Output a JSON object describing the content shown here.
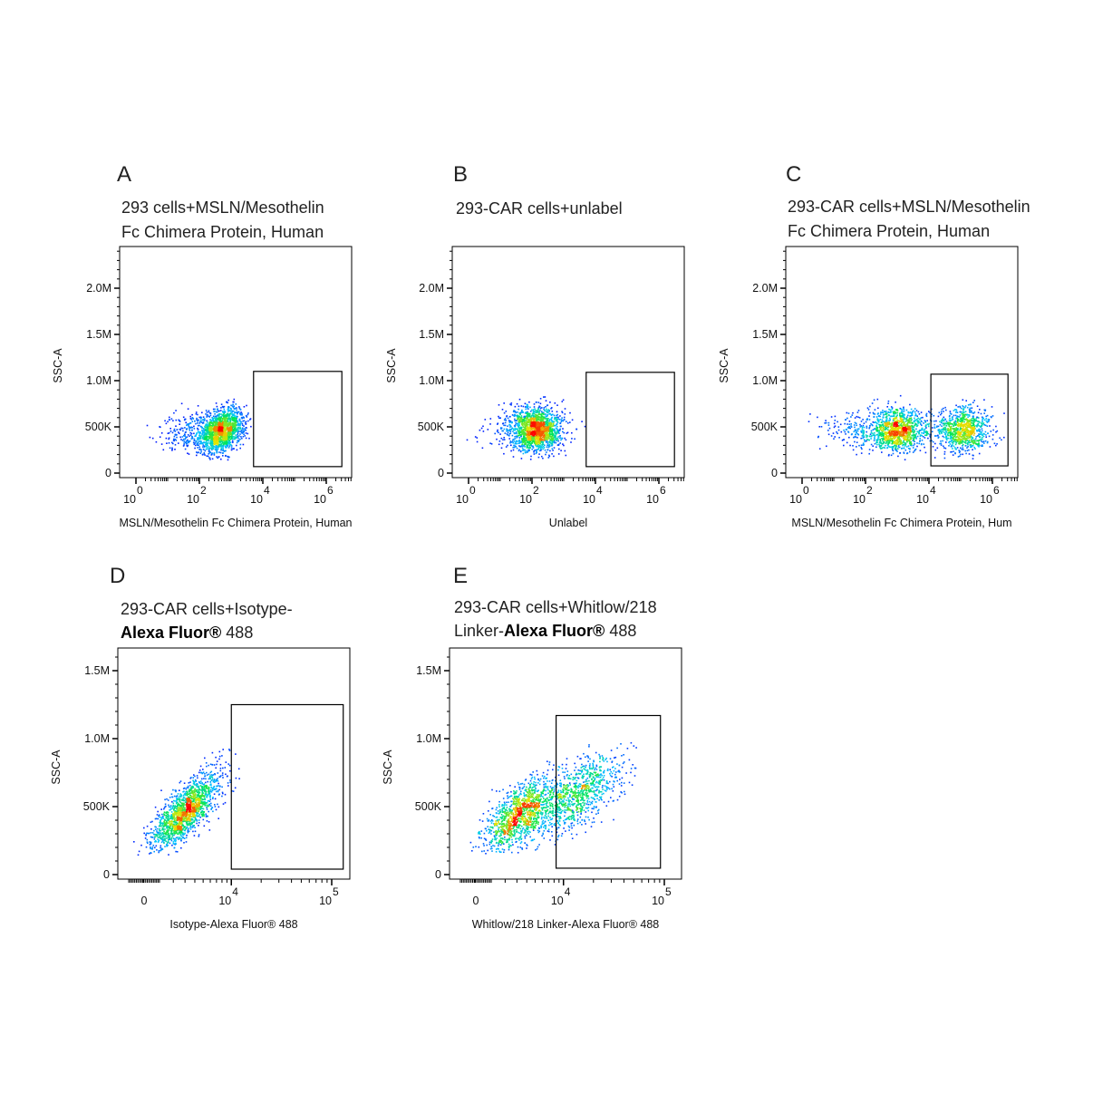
{
  "chart_data": {
    "type": "scatter",
    "panels": [
      {
        "label": "A",
        "title_lines": [
          [
            "293 cells+MSLN/Mesothelin"
          ],
          [
            "Fc Chimera Protein, Human"
          ]
        ],
        "xlabel": "MSLN/Mesothelin Fc Chimera Protein, Human",
        "ylabel": "SSC-A",
        "x_scale": "log",
        "x_ticks": [
          {
            "base": "10",
            "exp": "0",
            "value": 1
          },
          {
            "base": "10",
            "exp": "2",
            "value": 100
          },
          {
            "base": "10",
            "exp": "4",
            "value": 10000
          },
          {
            "base": "10",
            "exp": "6",
            "value": 1000000
          }
        ],
        "y_ticks": [
          {
            "label": "0",
            "value": 0
          },
          {
            "label": "500K",
            "value": 500000
          },
          {
            "label": "1.0M",
            "value": 1000000
          },
          {
            "label": "1.5M",
            "value": 1500000
          },
          {
            "label": "2.0M",
            "value": 2000000
          }
        ],
        "ylim": [
          0,
          2450000
        ],
        "gate": {
          "x": [
            5100,
            3100000
          ],
          "y": [
            70000,
            1100000
          ]
        },
        "populations": [
          {
            "center_x": 500,
            "center_y": 470000,
            "spread_log10": 0.35,
            "spread_y": 120000,
            "n": 1500,
            "corr": 0.3
          },
          {
            "center_x": 60,
            "center_y": 450000,
            "spread_log10": 0.55,
            "spread_y": 110000,
            "n": 300,
            "corr": 0.1
          }
        ]
      },
      {
        "label": "B",
        "title_lines": [
          [
            "293-CAR cells+unlabel"
          ]
        ],
        "xlabel": "Unlabel",
        "ylabel": "SSC-A",
        "x_scale": "log",
        "x_ticks": [
          {
            "base": "10",
            "exp": "0",
            "value": 1
          },
          {
            "base": "10",
            "exp": "2",
            "value": 100
          },
          {
            "base": "10",
            "exp": "4",
            "value": 10000
          },
          {
            "base": "10",
            "exp": "6",
            "value": 1000000
          }
        ],
        "y_ticks": [
          {
            "label": "0",
            "value": 0
          },
          {
            "label": "500K",
            "value": 500000
          },
          {
            "label": "1.0M",
            "value": 1000000
          },
          {
            "label": "1.5M",
            "value": 1500000
          },
          {
            "label": "2.0M",
            "value": 2000000
          }
        ],
        "ylim": [
          0,
          2450000
        ],
        "gate": {
          "x": [
            5100,
            3100000
          ],
          "y": [
            70000,
            1090000
          ]
        },
        "populations": [
          {
            "center_x": 130,
            "center_y": 480000,
            "spread_log10": 0.4,
            "spread_y": 120000,
            "n": 1500,
            "corr": 0.0
          },
          {
            "center_x": 60,
            "center_y": 480000,
            "spread_log10": 0.7,
            "spread_y": 120000,
            "n": 200,
            "corr": 0.0
          }
        ]
      },
      {
        "label": "C",
        "title_lines": [
          [
            "293-CAR cells+MSLN/Mesothelin"
          ],
          [
            "Fc Chimera Protein, Human"
          ]
        ],
        "xlabel": "MSLN/Mesothelin Fc Chimera Protein, Hum",
        "ylabel": "SSC-A",
        "x_scale": "log",
        "x_ticks": [
          {
            "base": "10",
            "exp": "0",
            "value": 1
          },
          {
            "base": "10",
            "exp": "2",
            "value": 100
          },
          {
            "base": "10",
            "exp": "4",
            "value": 10000
          },
          {
            "base": "10",
            "exp": "6",
            "value": 1000000
          }
        ],
        "y_ticks": [
          {
            "label": "0",
            "value": 0
          },
          {
            "label": "500K",
            "value": 500000
          },
          {
            "label": "1.0M",
            "value": 1000000
          },
          {
            "label": "1.5M",
            "value": 1500000
          },
          {
            "label": "2.0M",
            "value": 2000000
          }
        ],
        "ylim": [
          0,
          2450000
        ],
        "gate": {
          "x": [
            11500,
            3100000
          ],
          "y": [
            78000,
            1070000
          ]
        },
        "populations": [
          {
            "center_x": 1000,
            "center_y": 470000,
            "spread_log10": 0.45,
            "spread_y": 110000,
            "n": 1100,
            "corr": 0.0
          },
          {
            "center_x": 100000,
            "center_y": 480000,
            "spread_log10": 0.45,
            "spread_y": 120000,
            "n": 900,
            "corr": 0.0
          },
          {
            "center_x": 60,
            "center_y": 470000,
            "spread_log10": 0.6,
            "spread_y": 110000,
            "n": 200,
            "corr": 0.0
          }
        ]
      },
      {
        "label": "D",
        "title_lines": [
          [
            "293-CAR  cells+Isotype-"
          ],
          [
            "Alexa Fluor®",
            " 488"
          ]
        ],
        "xlabel": "Isotype-Alexa Fluor® 488",
        "ylabel": "SSC-A",
        "x_scale": "biexponential",
        "x_ticks": [
          {
            "base": "0",
            "exp": "",
            "value": 0
          },
          {
            "base": "10",
            "exp": "4",
            "value": 10000
          },
          {
            "base": "10",
            "exp": "5",
            "value": 100000
          }
        ],
        "y_ticks": [
          {
            "label": "0",
            "value": 0
          },
          {
            "label": "500K",
            "value": 500000
          },
          {
            "label": "1.0M",
            "value": 1000000
          },
          {
            "label": "1.5M",
            "value": 1500000
          }
        ],
        "ylim": [
          0,
          1700000
        ],
        "gate": {
          "x": [
            10000,
            130000
          ],
          "y": [
            40000,
            1250000
          ]
        },
        "populations": [
          {
            "center_x": 3000,
            "center_y": 470000,
            "spread_t": 0.38,
            "spread_y": 140000,
            "n": 1600,
            "corr": 0.75
          }
        ]
      },
      {
        "label": "E",
        "title_lines": [
          [
            "293-CAR cells+Whitlow/218"
          ],
          [
            "Linker-",
            "Alexa Fluor®",
            " 488"
          ]
        ],
        "xlabel": "Whitlow/218 Linker-Alexa Fluor® 488",
        "ylabel": "SSC-A",
        "x_scale": "biexponential",
        "x_ticks": [
          {
            "base": "0",
            "exp": "",
            "value": 0
          },
          {
            "base": "10",
            "exp": "4",
            "value": 10000
          },
          {
            "base": "10",
            "exp": "5",
            "value": 100000
          }
        ],
        "y_ticks": [
          {
            "label": "0",
            "value": 0
          },
          {
            "label": "500K",
            "value": 500000
          },
          {
            "label": "1.0M",
            "value": 1000000
          },
          {
            "label": "1.5M",
            "value": 1500000
          }
        ],
        "ylim": [
          0,
          1700000
        ],
        "gate": {
          "x": [
            8400,
            91600
          ],
          "y": [
            47000,
            1170000
          ]
        },
        "populations": [
          {
            "center_x": 3300,
            "center_y": 450000,
            "spread_t": 0.4,
            "spread_y": 130000,
            "n": 1200,
            "corr": 0.6
          },
          {
            "center_x": 14000,
            "center_y": 600000,
            "spread_t": 0.5,
            "spread_y": 150000,
            "n": 900,
            "corr": 0.6
          }
        ]
      }
    ]
  }
}
